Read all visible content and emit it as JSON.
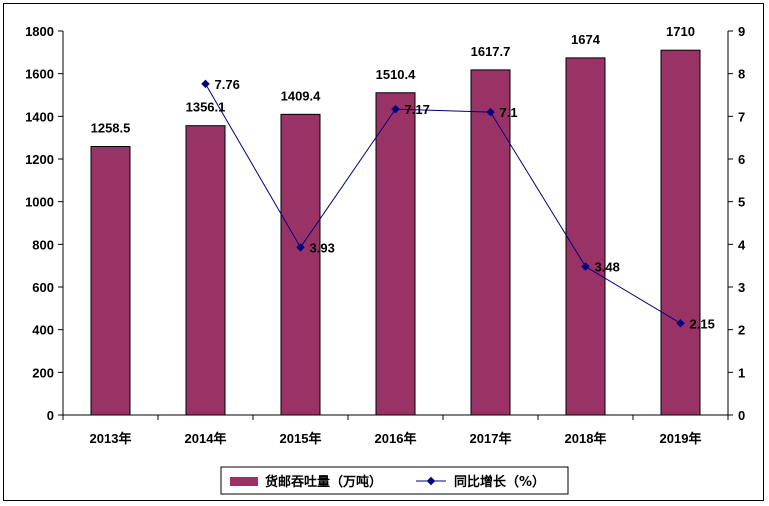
{
  "chart_data": {
    "type": "bar+line",
    "categories": [
      "2013年",
      "2014年",
      "2015年",
      "2016年",
      "2017年",
      "2018年",
      "2019年"
    ],
    "series": [
      {
        "name": "货邮吞吐量（万吨）",
        "type": "bar",
        "axis": "left",
        "values": [
          1258.5,
          1356.1,
          1409.4,
          1510.4,
          1617.7,
          1674,
          1710
        ],
        "labels": [
          "1258.5",
          "1356.1",
          "1409.4",
          "1510.4",
          "1617.7",
          "1674",
          "1710"
        ],
        "color": "#993366"
      },
      {
        "name": "同比增长（%）",
        "type": "line",
        "axis": "right",
        "values": [
          null,
          7.76,
          3.93,
          7.17,
          7.1,
          3.48,
          2.15
        ],
        "labels": [
          "",
          "7.76",
          "3.93",
          "7.17",
          "7.1",
          "3.48",
          "2.15"
        ],
        "color": "#000080"
      }
    ],
    "y_left": {
      "range": [
        0,
        1800
      ],
      "ticks": [
        "0",
        "200",
        "400",
        "600",
        "800",
        "1000",
        "1200",
        "1400",
        "1600",
        "1800"
      ]
    },
    "y_right": {
      "range": [
        0,
        9
      ],
      "ticks": [
        "0",
        "1",
        "2",
        "3",
        "4",
        "5",
        "6",
        "7",
        "8",
        "9"
      ]
    },
    "grid": false,
    "legend_position": "bottom"
  }
}
